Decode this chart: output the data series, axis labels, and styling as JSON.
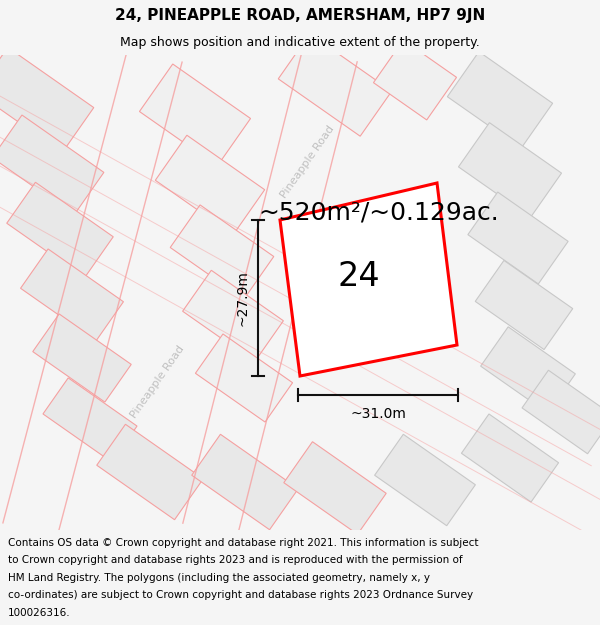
{
  "title": "24, PINEAPPLE ROAD, AMERSHAM, HP7 9JN",
  "subtitle": "Map shows position and indicative extent of the property.",
  "area_text": "~520m²/~0.129ac.",
  "width_label": "~31.0m",
  "height_label": "~27.9m",
  "number_label": "24",
  "road_label_left": "Pineapple Road",
  "road_label_right": "Pineapple Road",
  "copyright_text": "Contains OS data © Crown copyright and database right 2021. This information is subject to Crown copyright and database rights 2023 and is reproduced with the permission of HM Land Registry. The polygons (including the associated geometry, namely x, y co-ordinates) are subject to Crown copyright and database rights 2023 Ordnance Survey 100026316.",
  "bg_color": "#f5f5f5",
  "map_bg": "#ffffff",
  "title_fontsize": 11,
  "subtitle_fontsize": 9,
  "area_fontsize": 18,
  "copyright_fontsize": 7.5,
  "red_color": "#ff0000",
  "pink_color": "#f5a0a0",
  "grey_fill": "#e8e8e8",
  "grey_edge": "#c8c8c8",
  "light_grey_fill": "#f0f0f0",
  "road_text_color": "#c0c0c0",
  "dim_line_color": "#111111"
}
